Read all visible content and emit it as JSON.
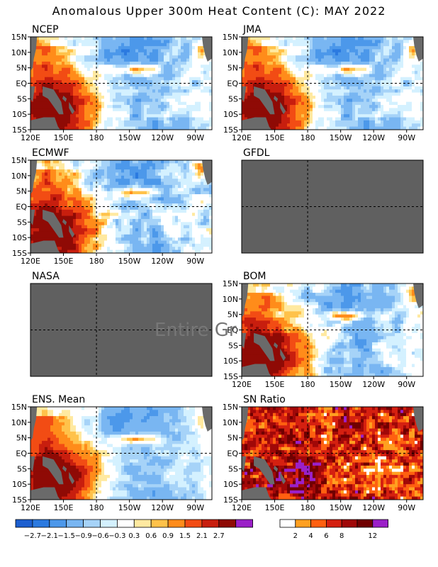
{
  "title": "Anomalous Upper 300m Heat Content (C): MAY 2022",
  "chart_data": [
    {
      "type": "heatmap",
      "title": "NCEP",
      "has_data": true,
      "lat_ticks": [
        "15N",
        "10N",
        "5N",
        "EQ",
        "5S",
        "10S",
        "15S"
      ],
      "lon_ticks": [
        "120E",
        "150E",
        "180",
        "150W",
        "120W",
        "90W"
      ],
      "field": "A",
      "note": "warm west/southwest (≈0.9–2.7), cool east-central (≈−0.3 to −1.5), warm band near 5N 150W"
    },
    {
      "type": "heatmap",
      "title": "JMA",
      "has_data": true,
      "lat_ticks": [
        "15N",
        "10N",
        "5N",
        "EQ",
        "5S",
        "10S",
        "15S"
      ],
      "lon_ticks": [
        "120E",
        "150E",
        "180",
        "150W",
        "120W",
        "90W"
      ],
      "field": "A"
    },
    {
      "type": "heatmap",
      "title": "ECMWF",
      "has_data": true,
      "lat_ticks": [
        "15N",
        "10N",
        "5N",
        "EQ",
        "5S",
        "10S",
        "15S"
      ],
      "lon_ticks": [
        "120E",
        "150E",
        "180",
        "150W",
        "120W",
        "90W"
      ],
      "field": "C"
    },
    {
      "type": "heatmap",
      "title": "GFDL",
      "has_data": false,
      "lat_ticks": [],
      "lon_ticks": []
    },
    {
      "type": "heatmap",
      "title": "NASA",
      "has_data": false,
      "lat_ticks": [],
      "lon_ticks": []
    },
    {
      "type": "heatmap",
      "title": "BOM",
      "has_data": true,
      "lat_ticks": [
        "15N",
        "10N",
        "5N",
        "EQ",
        "5S",
        "10S",
        "15S"
      ],
      "lon_ticks": [
        "120E",
        "150E",
        "180",
        "150W",
        "120W",
        "90W"
      ],
      "field": "B"
    },
    {
      "type": "heatmap",
      "title": "ENS. Mean",
      "has_data": true,
      "lat_ticks": [
        "15N",
        "10N",
        "5N",
        "EQ",
        "5S",
        "10S",
        "15S"
      ],
      "lon_ticks": [
        "120E",
        "150E",
        "180",
        "150W",
        "120W",
        "90W"
      ],
      "field": "M"
    },
    {
      "type": "heatmap",
      "title": "SN Ratio",
      "has_data": true,
      "lat_ticks": [
        "15N",
        "10N",
        "5N",
        "EQ",
        "5S",
        "10S",
        "15S"
      ],
      "lon_ticks": [
        "120E",
        "150E",
        "180",
        "150W",
        "120W",
        "90W"
      ],
      "field": "S"
    }
  ],
  "missing_text": "Entire Gr",
  "anomaly_legend": {
    "labels": [
      "-2.7",
      "-2.1",
      "-1.5",
      "-0.9",
      "-0.6",
      "-0.3",
      "0.3",
      "0.6",
      "0.9",
      "1.5",
      "2.1",
      "2.7"
    ],
    "colors": [
      "#1c5fd0",
      "#2b7ae0",
      "#4c98ea",
      "#79b6f2",
      "#a6d3f8",
      "#d4f1ff",
      "#ffffff",
      "#ffe9a0",
      "#ffc24a",
      "#ff8c1a",
      "#f24c14",
      "#c81e0e",
      "#8f0a05",
      "#9b20c8"
    ]
  },
  "sn_legend": {
    "labels": [
      "2",
      "4",
      "6",
      "8",
      "12"
    ],
    "colors": [
      "#ffffff",
      "#ffa020",
      "#ff6010",
      "#d52010",
      "#a00808",
      "#700000",
      "#9b20c8"
    ]
  },
  "colors": {
    "land": "#6a6a6a",
    "missing": "#606060",
    "gridline": "#000000"
  }
}
